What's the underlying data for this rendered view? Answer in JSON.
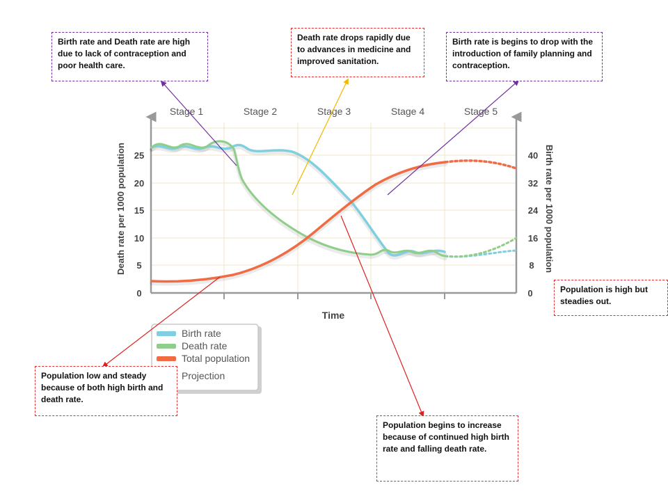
{
  "chart_data": {
    "type": "line",
    "xlabel": "Time",
    "ylabel_left": "Death rate per 1000 population",
    "ylabel_right": "Birth rate per 1000 population",
    "stages": [
      "Stage 1",
      "Stage 2",
      "Stage 3",
      "Stage 4",
      "Stage 5"
    ],
    "left_axis": {
      "ticks": [
        "0",
        "5",
        "10",
        "15",
        "20",
        "25"
      ],
      "ylim": [
        0,
        30
      ]
    },
    "right_axis": {
      "ticks": [
        "0",
        "8",
        "16",
        "24",
        "32",
        "40"
      ],
      "ylim": [
        0,
        48
      ]
    },
    "legend": [
      "Birth rate",
      "Death rate",
      "Total population",
      "Projection"
    ],
    "grid": true,
    "colors": {
      "birth": "#7fcfe0",
      "death": "#8fce8a",
      "population": "#ef6c45",
      "grid": "#f2e6c6"
    }
  },
  "annotations": [
    {
      "text": "Birth rate and Death rate are high due to lack of contraception and poor health care."
    },
    {
      "text": "Death rate drops rapidly due to advances in medicine and improved sanitation."
    },
    {
      "text": "Birth rate is begins to drop with the introduction of family planning and contraception."
    },
    {
      "text": "Population is high but steadies out."
    },
    {
      "text": "Population low and steady because of both high birth and death rate."
    },
    {
      "text": "Population begins to increase because of continued high birth rate and falling death rate."
    }
  ]
}
